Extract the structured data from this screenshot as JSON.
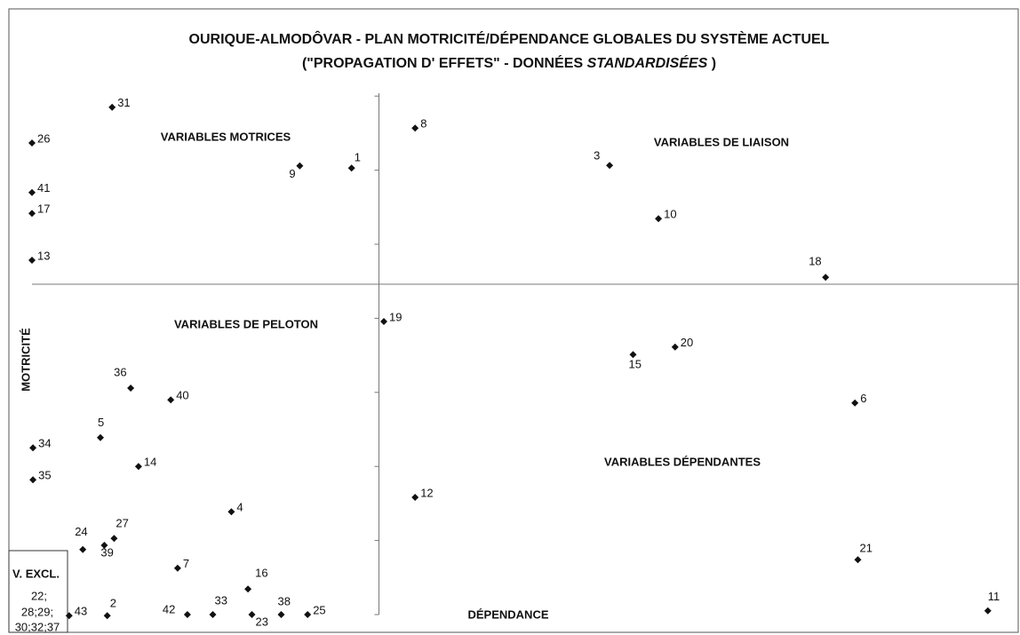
{
  "chart_data": {
    "type": "scatter",
    "title": "OURIQUE-ALMODÔVAR - PLAN MOTRICITÉ/DÉPENDANCE GLOBALES DU SYSTÈME ACTUEL",
    "subtitle": [
      "(\"PROPAGATION D' EFFETS\" - DONNÉES ",
      "STANDARDISÉES",
      " )"
    ],
    "xlabel": "DÉPENDANCE",
    "ylabel": "MOTRICITÉ",
    "annotations": [
      "VARIABLES MOTRICES",
      "VARIABLES DE LIAISON",
      "VARIABLES DE PELOTON",
      "VARIABLES DÉPENDANTES"
    ],
    "excluded": {
      "title": "V. EXCL.",
      "lines": [
        "22;",
        "28;29;",
        "30;32;37"
      ]
    },
    "labels": [
      "31",
      "26",
      "41",
      "17",
      "13",
      "9",
      "1",
      "8",
      "3",
      "10",
      "18",
      "19",
      "20",
      "15",
      "6",
      "36",
      "40",
      "5",
      "34",
      "14",
      "35",
      "12",
      "4",
      "27",
      "24",
      "39",
      "7",
      "21",
      "16",
      "2",
      "42",
      "33",
      "23",
      "38",
      "25",
      "43",
      "11"
    ],
    "x": [
      8.2,
      0,
      0,
      0,
      0,
      27.4,
      32.7,
      39.2,
      59.1,
      64.1,
      81.2,
      36,
      65.8,
      61.5,
      84.2,
      10.1,
      14.2,
      7,
      0.1,
      10.9,
      0.1,
      39.2,
      20.4,
      8.4,
      5.2,
      7.4,
      14.9,
      84.5,
      22.1,
      7.7,
      15.9,
      18.5,
      22.5,
      25.5,
      28.2,
      3.8,
      97.8
    ],
    "y": [
      95.7,
      89,
      79.7,
      75.8,
      67,
      84.7,
      84.3,
      91.8,
      84.8,
      74.8,
      63.8,
      55.5,
      50.7,
      49.3,
      40.2,
      43,
      40.8,
      33.7,
      31.8,
      28.3,
      25.8,
      22.5,
      19.8,
      14.8,
      12.7,
      13.5,
      9.2,
      10.8,
      5.3,
      0.3,
      0.5,
      0.5,
      0.5,
      0.5,
      0.5,
      0.3,
      1.2
    ],
    "color": "#111111",
    "xlim": [
      0,
      100
    ],
    "ylim": [
      0,
      100
    ],
    "crossing": [
      35.5,
      62.5
    ],
    "yticks": [
      0.5,
      14.4,
      28.3,
      42.2,
      56.1,
      70,
      83.9,
      97.8
    ]
  }
}
